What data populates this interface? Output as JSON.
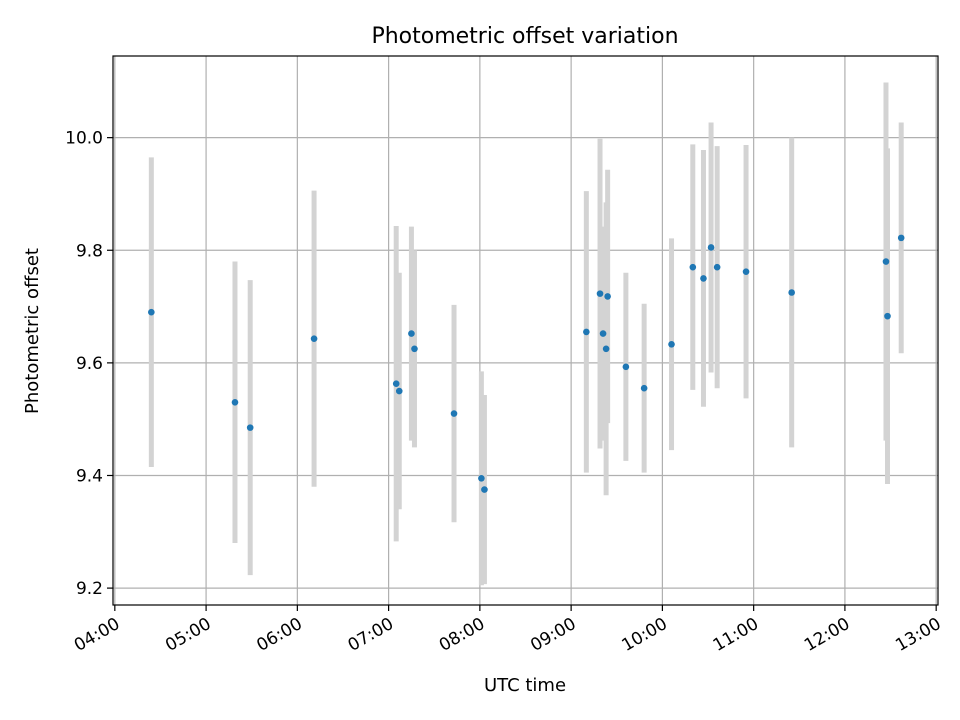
{
  "chart_data": {
    "type": "scatter",
    "title": "Photometric offset variation",
    "xlabel": "UTC time",
    "ylabel": "Photometric offset",
    "x_ticks": [
      "04:00",
      "05:00",
      "06:00",
      "07:00",
      "08:00",
      "09:00",
      "10:00",
      "11:00",
      "12:00",
      "13:00"
    ],
    "y_ticks": [
      "9.2",
      "9.4",
      "9.6",
      "9.8",
      "10.0"
    ],
    "xlim": [
      "04:00",
      "13:00"
    ],
    "ylim": [
      9.17,
      10.145
    ],
    "grid": true,
    "point_color": "#1f77b4",
    "errorbar_color": "#d3d3d3",
    "points": [
      {
        "t": "04:24",
        "y": 9.69,
        "err": 0.275
      },
      {
        "t": "05:19",
        "y": 9.53,
        "err": 0.25
      },
      {
        "t": "05:29",
        "y": 9.485,
        "err": 0.262
      },
      {
        "t": "06:11",
        "y": 9.643,
        "err": 0.263
      },
      {
        "t": "07:05",
        "y": 9.563,
        "err": 0.28
      },
      {
        "t": "07:07",
        "y": 9.55,
        "err": 0.21
      },
      {
        "t": "07:15",
        "y": 9.652,
        "err": 0.19
      },
      {
        "t": "07:17",
        "y": 9.625,
        "err": 0.175
      },
      {
        "t": "07:43",
        "y": 9.51,
        "err": 0.193
      },
      {
        "t": "08:01",
        "y": 9.395,
        "err": 0.19
      },
      {
        "t": "08:03",
        "y": 9.375,
        "err": 0.168
      },
      {
        "t": "09:10",
        "y": 9.655,
        "err": 0.25
      },
      {
        "t": "09:19",
        "y": 9.723,
        "err": 0.275
      },
      {
        "t": "09:21",
        "y": 9.652,
        "err": 0.19
      },
      {
        "t": "09:23",
        "y": 9.625,
        "err": 0.26
      },
      {
        "t": "09:24",
        "y": 9.718,
        "err": 0.225
      },
      {
        "t": "09:36",
        "y": 9.593,
        "err": 0.167
      },
      {
        "t": "09:48",
        "y": 9.555,
        "err": 0.15
      },
      {
        "t": "10:06",
        "y": 9.633,
        "err": 0.188
      },
      {
        "t": "10:20",
        "y": 9.77,
        "err": 0.218
      },
      {
        "t": "10:27",
        "y": 9.75,
        "err": 0.228
      },
      {
        "t": "10:32",
        "y": 9.805,
        "err": 0.222
      },
      {
        "t": "10:36",
        "y": 9.77,
        "err": 0.215
      },
      {
        "t": "10:55",
        "y": 9.762,
        "err": 0.225
      },
      {
        "t": "11:25",
        "y": 9.725,
        "err": 0.275
      },
      {
        "t": "12:27",
        "y": 9.78,
        "err": 0.318
      },
      {
        "t": "12:28",
        "y": 9.683,
        "err": 0.298
      },
      {
        "t": "12:37",
        "y": 9.822,
        "err": 0.205
      }
    ]
  }
}
